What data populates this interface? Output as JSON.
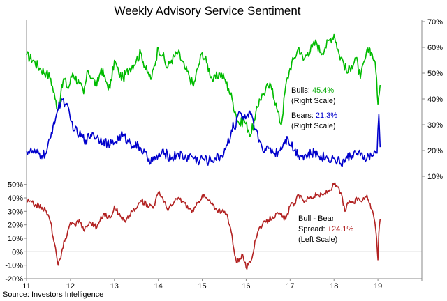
{
  "chart_data": {
    "type": "line",
    "title": "Weekly Advisory Service Sentiment",
    "source": "Source: Investors Intelligence",
    "x_ticks": [
      "11",
      "12",
      "13",
      "14",
      "15",
      "16",
      "17",
      "18",
      "19"
    ],
    "x_range": [
      2011.0,
      2020.0
    ],
    "right_axis": {
      "ticks": [
        "10%",
        "20%",
        "30%",
        "40%",
        "50%",
        "60%",
        "70%"
      ],
      "tick_values": [
        10,
        20,
        30,
        40,
        50,
        60,
        70
      ],
      "range": [
        0,
        70
      ]
    },
    "left_axis": {
      "ticks": [
        "-20%",
        "-10%",
        "0%",
        "10%",
        "20%",
        "30%",
        "40%",
        "50%"
      ],
      "tick_values": [
        -20,
        -10,
        0,
        10,
        20,
        30,
        40,
        50
      ],
      "range": [
        -20,
        55
      ]
    },
    "colors": {
      "bulls": "#00bb00",
      "bears": "#0000cc",
      "spread": "#b22222",
      "zero_line": "#888888"
    },
    "series": [
      {
        "name": "Bulls",
        "axis": "right",
        "x": [
          2011.0,
          2011.15,
          2011.3,
          2011.45,
          2011.55,
          2011.65,
          2011.72,
          2011.78,
          2011.85,
          2011.95,
          2012.05,
          2012.2,
          2012.3,
          2012.4,
          2012.5,
          2012.6,
          2012.7,
          2012.8,
          2012.9,
          2013.0,
          2013.1,
          2013.2,
          2013.35,
          2013.5,
          2013.6,
          2013.75,
          2013.85,
          2014.0,
          2014.1,
          2014.2,
          2014.3,
          2014.45,
          2014.6,
          2014.7,
          2014.8,
          2014.9,
          2015.0,
          2015.1,
          2015.25,
          2015.4,
          2015.5,
          2015.6,
          2015.68,
          2015.75,
          2015.85,
          2015.95,
          2016.05,
          2016.1,
          2016.2,
          2016.3,
          2016.4,
          2016.5,
          2016.6,
          2016.7,
          2016.8,
          2016.9,
          2017.0,
          2017.1,
          2017.2,
          2017.3,
          2017.4,
          2017.5,
          2017.6,
          2017.7,
          2017.8,
          2017.9,
          2018.0,
          2018.05,
          2018.12,
          2018.2,
          2018.3,
          2018.4,
          2018.5,
          2018.6,
          2018.7,
          2018.8,
          2018.85,
          2018.92,
          2018.97,
          2019.0,
          2019.03,
          2019.05
        ],
        "values": [
          57,
          55,
          52,
          50,
          48,
          40,
          36,
          42,
          48,
          44,
          50,
          46,
          42,
          51,
          48,
          45,
          52,
          47,
          44,
          55,
          50,
          48,
          52,
          55,
          58,
          50,
          48,
          60,
          57,
          52,
          55,
          58,
          52,
          49,
          45,
          52,
          58,
          54,
          47,
          50,
          48,
          44,
          40,
          35,
          30,
          32,
          28,
          26,
          32,
          40,
          42,
          45,
          44,
          36,
          30,
          45,
          52,
          56,
          60,
          55,
          58,
          60,
          62,
          58,
          60,
          63,
          65,
          62,
          57,
          55,
          50,
          53,
          56,
          48,
          55,
          60,
          58,
          55,
          48,
          38,
          42,
          45.4
        ]
      },
      {
        "name": "Bears",
        "axis": "right",
        "x": [
          2011.0,
          2011.2,
          2011.35,
          2011.45,
          2011.55,
          2011.62,
          2011.7,
          2011.8,
          2011.9,
          2012.0,
          2012.1,
          2012.2,
          2012.35,
          2012.5,
          2012.6,
          2012.75,
          2012.9,
          2013.0,
          2013.15,
          2013.3,
          2013.45,
          2013.6,
          2013.75,
          2013.9,
          2014.0,
          2014.15,
          2014.3,
          2014.45,
          2014.6,
          2014.75,
          2014.9,
          2015.0,
          2015.15,
          2015.3,
          2015.45,
          2015.55,
          2015.65,
          2015.7,
          2015.75,
          2015.8,
          2015.85,
          2015.95,
          2016.05,
          2016.1,
          2016.2,
          2016.3,
          2016.35,
          2016.45,
          2016.55,
          2016.65,
          2016.75,
          2016.85,
          2016.95,
          2017.1,
          2017.25,
          2017.4,
          2017.55,
          2017.7,
          2017.85,
          2018.0,
          2018.08,
          2018.15,
          2018.3,
          2018.45,
          2018.6,
          2018.75,
          2018.85,
          2018.9,
          2018.95,
          2018.98,
          2019.0,
          2019.02,
          2019.05
        ],
        "values": [
          20,
          19,
          18,
          19,
          25,
          31,
          35,
          40,
          38,
          32,
          28,
          26,
          24,
          27,
          25,
          24,
          22,
          23,
          26,
          24,
          22,
          21,
          17,
          16,
          18,
          19,
          17,
          19,
          17,
          18,
          16,
          17,
          16,
          17,
          18,
          22,
          26,
          31,
          28,
          33,
          35,
          32,
          33,
          34,
          28,
          24,
          22,
          20,
          21,
          19,
          20,
          23,
          25,
          20,
          18,
          18,
          19,
          18,
          17,
          17,
          16,
          15,
          17,
          19,
          18,
          17,
          18,
          18,
          19,
          19,
          28,
          34,
          21.3
        ]
      },
      {
        "name": "Bull - Bear Spread",
        "axis": "left",
        "x": [
          2011.0,
          2011.2,
          2011.35,
          2011.45,
          2011.55,
          2011.62,
          2011.68,
          2011.72,
          2011.78,
          2011.85,
          2011.92,
          2012.0,
          2012.1,
          2012.2,
          2012.3,
          2012.45,
          2012.6,
          2012.75,
          2012.9,
          2013.0,
          2013.1,
          2013.25,
          2013.4,
          2013.5,
          2013.6,
          2013.75,
          2013.9,
          2014.0,
          2014.1,
          2014.2,
          2014.3,
          2014.45,
          2014.6,
          2014.7,
          2014.8,
          2014.9,
          2015.0,
          2015.15,
          2015.3,
          2015.45,
          2015.55,
          2015.62,
          2015.68,
          2015.72,
          2015.78,
          2015.85,
          2015.92,
          2016.0,
          2016.05,
          2016.1,
          2016.15,
          2016.2,
          2016.3,
          2016.45,
          2016.6,
          2016.75,
          2016.9,
          2017.0,
          2017.1,
          2017.2,
          2017.3,
          2017.45,
          2017.6,
          2017.75,
          2017.9,
          2018.0,
          2018.08,
          2018.15,
          2018.25,
          2018.35,
          2018.45,
          2018.55,
          2018.65,
          2018.75,
          2018.82,
          2018.88,
          2018.93,
          2018.97,
          2019.0,
          2019.02,
          2019.05
        ],
        "values": [
          38,
          35,
          33,
          30,
          22,
          8,
          -2,
          -10,
          -5,
          8,
          12,
          22,
          20,
          24,
          16,
          22,
          18,
          28,
          25,
          34,
          28,
          22,
          30,
          32,
          38,
          35,
          34,
          44,
          40,
          32,
          34,
          40,
          36,
          32,
          30,
          36,
          42,
          38,
          32,
          30,
          28,
          20,
          12,
          2,
          -8,
          -5,
          -2,
          -12,
          -10,
          -8,
          -2,
          8,
          18,
          22,
          26,
          28,
          24,
          34,
          36,
          42,
          38,
          40,
          42,
          42,
          46,
          50,
          48,
          44,
          30,
          38,
          36,
          40,
          38,
          42,
          36,
          30,
          22,
          10,
          -6,
          14,
          24.1
        ]
      }
    ],
    "annotations": {
      "bulls": {
        "label": "Bulls: ",
        "value": "45.4%",
        "scale": "(Right Scale)"
      },
      "bears": {
        "label": "Bears: ",
        "value": "21.3%",
        "scale": "(Right Scale)"
      },
      "spread": {
        "label": "Bull - Bear",
        "label2": "Spread: ",
        "value": "+24.1%",
        "scale": "(Left Scale)"
      }
    }
  }
}
